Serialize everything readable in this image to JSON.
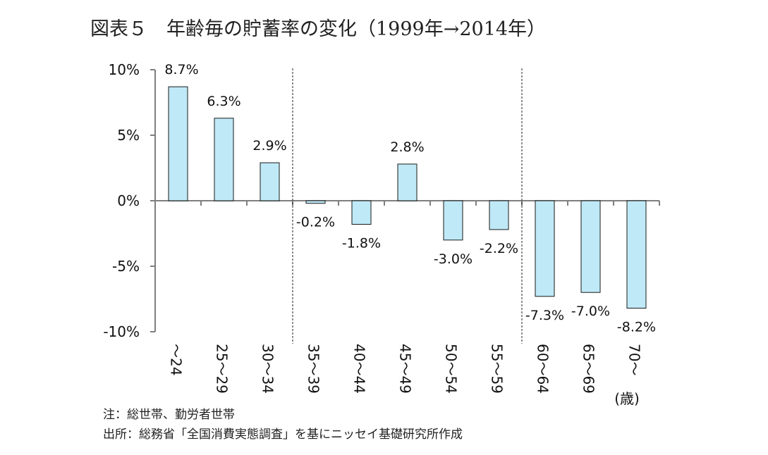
{
  "chart_data": {
    "type": "bar",
    "title": "図表５　年齢毎の貯蓄率の変化（1999年→2014年）",
    "categories": [
      "～24",
      "25～29",
      "30～34",
      "35～39",
      "40～44",
      "45～49",
      "50～54",
      "55～59",
      "60～64",
      "65～69",
      "70～"
    ],
    "series": [
      {
        "values": [
          8.7,
          6.3,
          2.9,
          -0.2,
          -1.8,
          2.8,
          -3.0,
          -2.2,
          -7.3,
          -7.0,
          -8.2
        ]
      }
    ],
    "data_labels": [
      "8.7%",
      "6.3%",
      "2.9%",
      "-0.2%",
      "-1.8%",
      "2.8%",
      "-3.0%",
      "-2.2%",
      "-7.3%",
      "-7.0%",
      "-8.2%"
    ],
    "ylim": [
      -10,
      10
    ],
    "yticks": [
      10,
      5,
      0,
      -5,
      -10
    ],
    "ytick_labels": [
      "10%",
      "5%",
      "0%",
      "-5%",
      "-10%"
    ],
    "x_unit_label": "(歳)",
    "group_separators_after": [
      2,
      7
    ],
    "bar_color": "#bfe9f6",
    "bar_edge_color": "#1a1a1a",
    "grid": false,
    "legend": "none"
  },
  "notes": {
    "note": "注：総世帯、勤労者世帯",
    "source": "出所：総務省「全国消費実態調査」を基にニッセイ基礎研究所作成"
  }
}
